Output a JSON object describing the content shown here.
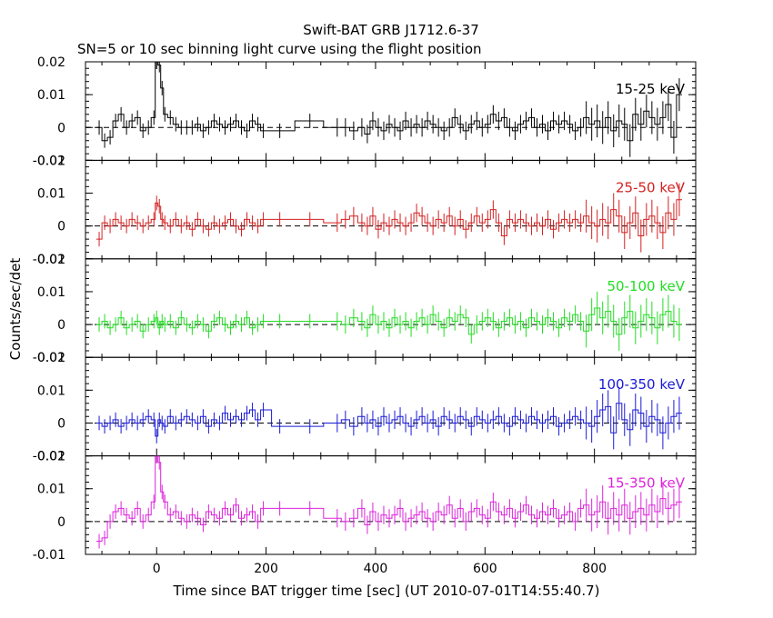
{
  "title": "Swift-BAT GRB J1712.6-37",
  "subtitle": "SN=5 or 10 sec binning light curve using the flight position",
  "xlabel": "Time since BAT trigger time [sec] (UT 2010-07-01T14:55:40.7)",
  "ylabel": "Counts/sec/det",
  "chart_data": [
    {
      "type": "line",
      "panel_label": "15-25 keV",
      "color": "#000000",
      "xlim": [
        -130,
        985
      ],
      "ylim": [
        -0.01,
        0.02
      ],
      "yticks": [
        "-0.01",
        "0",
        "0.01",
        "0.02"
      ],
      "x": [
        -105,
        -95,
        -85,
        -75,
        -65,
        -55,
        -45,
        -35,
        -25,
        -15,
        -5,
        0,
        5,
        10,
        15,
        25,
        35,
        45,
        55,
        65,
        75,
        85,
        95,
        105,
        115,
        125,
        135,
        145,
        155,
        165,
        175,
        185,
        195,
        225,
        280,
        330,
        345,
        360,
        375,
        385,
        395,
        405,
        415,
        425,
        435,
        445,
        455,
        465,
        475,
        485,
        495,
        505,
        515,
        525,
        535,
        545,
        555,
        565,
        575,
        585,
        595,
        605,
        615,
        625,
        635,
        645,
        655,
        665,
        675,
        685,
        695,
        705,
        715,
        725,
        735,
        745,
        755,
        765,
        775,
        785,
        795,
        805,
        815,
        825,
        835,
        845,
        855,
        865,
        875,
        885,
        895,
        905,
        915,
        925,
        935,
        945,
        955
      ],
      "values": [
        0.0,
        -0.004,
        -0.003,
        0.002,
        0.004,
        0.0,
        0.002,
        0.003,
        -0.001,
        0.0,
        0.003,
        0.02,
        0.019,
        0.012,
        0.004,
        0.003,
        0.001,
        0.0,
        0.0,
        0.0,
        0.001,
        -0.001,
        0.0,
        0.002,
        0.001,
        0.0,
        0.001,
        0.002,
        0.0,
        -0.001,
        0.002,
        0.001,
        -0.001,
        -0.001,
        0.002,
        0.0,
        0.0,
        -0.001,
        0.0,
        -0.002,
        0.002,
        0.0,
        -0.001,
        0.001,
        0.0,
        -0.001,
        0.002,
        0.0,
        0.001,
        0.0,
        0.002,
        0.001,
        0.0,
        -0.001,
        0.0,
        0.003,
        0.001,
        -0.001,
        0.001,
        0.002,
        0.0,
        0.001,
        0.004,
        0.002,
        0.003,
        0.0,
        -0.001,
        0.001,
        0.002,
        0.003,
        0.0,
        0.001,
        -0.001,
        0.002,
        0.001,
        0.002,
        0.001,
        -0.001,
        0.0,
        0.003,
        0.001,
        0.002,
        0.0,
        0.003,
        -0.001,
        0.002,
        0.001,
        -0.004,
        0.004,
        0.001,
        0.005,
        0.003,
        0.001,
        0.003,
        0.007,
        -0.003,
        0.01
      ]
    },
    {
      "type": "line",
      "panel_label": "25-50 keV",
      "color": "#d42020",
      "xlim": [
        -130,
        985
      ],
      "ylim": [
        -0.01,
        0.02
      ],
      "yticks": [
        "-0.01",
        "0",
        "0.01",
        "0.02"
      ],
      "x": [
        -105,
        -95,
        -85,
        -75,
        -65,
        -55,
        -45,
        -35,
        -25,
        -15,
        -5,
        0,
        5,
        10,
        15,
        25,
        35,
        45,
        55,
        65,
        75,
        85,
        95,
        105,
        115,
        125,
        135,
        145,
        155,
        165,
        175,
        185,
        195,
        225,
        280,
        330,
        345,
        360,
        375,
        385,
        395,
        405,
        415,
        425,
        435,
        445,
        455,
        465,
        475,
        485,
        495,
        505,
        515,
        525,
        535,
        545,
        555,
        565,
        575,
        585,
        595,
        605,
        615,
        625,
        635,
        645,
        655,
        665,
        675,
        685,
        695,
        705,
        715,
        725,
        735,
        745,
        755,
        765,
        775,
        785,
        795,
        805,
        815,
        825,
        835,
        845,
        855,
        865,
        875,
        885,
        895,
        905,
        915,
        925,
        935,
        945,
        955
      ],
      "values": [
        -0.004,
        0.001,
        0.0,
        0.002,
        0.001,
        0.0,
        0.002,
        0.001,
        0.0,
        0.001,
        0.002,
        0.007,
        0.006,
        0.002,
        0.001,
        0.0,
        0.002,
        0.0,
        0.001,
        -0.001,
        0.002,
        0.0,
        -0.001,
        0.001,
        0.0,
        0.001,
        0.002,
        0.0,
        -0.001,
        0.002,
        0.001,
        0.0,
        0.002,
        0.002,
        0.002,
        0.001,
        0.002,
        0.003,
        0.001,
        0.0,
        0.003,
        -0.001,
        0.001,
        0.0,
        0.002,
        0.001,
        0.0,
        0.001,
        0.004,
        0.003,
        0.001,
        0.0,
        0.002,
        0.001,
        0.003,
        0.0,
        0.002,
        -0.001,
        0.001,
        0.003,
        0.001,
        0.002,
        0.005,
        0.001,
        -0.003,
        0.002,
        0.001,
        0.002,
        0.001,
        0.0,
        0.001,
        0.0,
        0.002,
        -0.001,
        0.001,
        0.002,
        0.001,
        0.002,
        0.001,
        0.003,
        0.001,
        0.0,
        0.002,
        0.001,
        0.005,
        0.003,
        -0.002,
        0.001,
        0.004,
        -0.003,
        0.002,
        0.003,
        0.001,
        -0.002,
        0.004,
        0.002,
        0.008
      ]
    },
    {
      "type": "line",
      "panel_label": "50-100 keV",
      "color": "#22dd22",
      "xlim": [
        -130,
        985
      ],
      "ylim": [
        -0.01,
        0.02
      ],
      "yticks": [
        "-0.01",
        "0",
        "0.01",
        "0.02"
      ],
      "x": [
        -105,
        -95,
        -85,
        -75,
        -65,
        -55,
        -45,
        -35,
        -25,
        -15,
        -5,
        0,
        5,
        10,
        15,
        25,
        35,
        45,
        55,
        65,
        75,
        85,
        95,
        105,
        115,
        125,
        135,
        145,
        155,
        165,
        175,
        185,
        195,
        225,
        280,
        330,
        345,
        360,
        375,
        385,
        395,
        405,
        415,
        425,
        435,
        445,
        455,
        465,
        475,
        485,
        495,
        505,
        515,
        525,
        535,
        545,
        555,
        565,
        575,
        585,
        595,
        605,
        615,
        625,
        635,
        645,
        655,
        665,
        675,
        685,
        695,
        705,
        715,
        725,
        735,
        745,
        755,
        765,
        775,
        785,
        795,
        805,
        815,
        825,
        835,
        845,
        855,
        865,
        875,
        885,
        895,
        905,
        915,
        925,
        935,
        945,
        955
      ],
      "values": [
        0.0,
        0.001,
        -0.001,
        0.0,
        0.002,
        -0.001,
        0.0,
        0.001,
        -0.002,
        0.0,
        0.001,
        0.002,
        -0.001,
        0.001,
        0.0,
        0.001,
        -0.001,
        0.002,
        0.0,
        -0.001,
        0.001,
        0.0,
        -0.002,
        0.001,
        0.002,
        0.0,
        -0.001,
        0.001,
        0.0,
        0.002,
        -0.001,
        0.0,
        0.001,
        0.001,
        0.001,
        0.001,
        0.0,
        0.002,
        0.001,
        -0.001,
        0.003,
        0.0,
        0.001,
        -0.001,
        0.002,
        0.0,
        0.001,
        -0.001,
        0.001,
        0.002,
        0.0,
        0.003,
        0.001,
        -0.001,
        0.002,
        0.001,
        0.003,
        0.002,
        -0.003,
        0.0,
        0.001,
        0.002,
        0.001,
        -0.001,
        0.001,
        0.002,
        0.0,
        0.001,
        -0.001,
        0.002,
        0.001,
        0.0,
        0.002,
        0.001,
        -0.001,
        0.002,
        0.001,
        0.003,
        0.001,
        -0.002,
        0.003,
        0.005,
        0.002,
        0.004,
        0.001,
        -0.003,
        0.002,
        0.004,
        -0.001,
        0.001,
        0.003,
        0.002,
        -0.001,
        0.003,
        0.004,
        0.001,
        0.0
      ]
    },
    {
      "type": "line",
      "panel_label": "100-350 keV",
      "color": "#1a1ad6",
      "xlim": [
        -130,
        985
      ],
      "ylim": [
        -0.01,
        0.02
      ],
      "yticks": [
        "-0.01",
        "0",
        "0.01",
        "0.02"
      ],
      "x": [
        -105,
        -95,
        -85,
        -75,
        -65,
        -55,
        -45,
        -35,
        -25,
        -15,
        -5,
        0,
        5,
        10,
        15,
        25,
        35,
        45,
        55,
        65,
        75,
        85,
        95,
        105,
        115,
        125,
        135,
        145,
        155,
        165,
        175,
        185,
        195,
        225,
        280,
        330,
        345,
        360,
        375,
        385,
        395,
        405,
        415,
        425,
        435,
        445,
        455,
        465,
        475,
        485,
        495,
        505,
        515,
        525,
        535,
        545,
        555,
        565,
        575,
        585,
        595,
        605,
        615,
        625,
        635,
        645,
        655,
        665,
        675,
        685,
        695,
        705,
        715,
        725,
        735,
        745,
        755,
        765,
        775,
        785,
        795,
        805,
        815,
        825,
        835,
        845,
        855,
        865,
        875,
        885,
        895,
        905,
        915,
        925,
        935,
        945,
        955
      ],
      "values": [
        0.0,
        -0.001,
        0.0,
        0.001,
        -0.001,
        0.0,
        0.001,
        0.0,
        0.001,
        0.002,
        0.001,
        -0.004,
        0.001,
        0.0,
        -0.001,
        0.002,
        0.0,
        0.001,
        0.002,
        0.001,
        0.0,
        0.002,
        -0.001,
        0.001,
        0.0,
        0.003,
        0.001,
        0.002,
        0.001,
        0.003,
        0.004,
        0.001,
        0.004,
        -0.001,
        -0.001,
        0.0,
        0.001,
        -0.001,
        0.002,
        0.0,
        0.001,
        -0.001,
        0.002,
        0.0,
        0.001,
        0.002,
        0.0,
        -0.001,
        0.001,
        0.002,
        0.0,
        0.001,
        -0.001,
        0.002,
        0.001,
        0.0,
        0.002,
        0.001,
        -0.001,
        0.002,
        0.001,
        0.0,
        0.001,
        0.002,
        0.0,
        -0.001,
        0.002,
        0.001,
        0.0,
        0.002,
        0.001,
        0.0,
        0.001,
        0.002,
        -0.001,
        0.0,
        0.001,
        0.002,
        0.001,
        0.0,
        -0.001,
        0.002,
        0.004,
        0.005,
        -0.003,
        0.006,
        0.001,
        -0.002,
        0.004,
        0.003,
        -0.001,
        0.002,
        0.001,
        -0.003,
        0.0,
        0.002,
        0.003
      ]
    },
    {
      "type": "line",
      "panel_label": "15-350 keV",
      "color": "#dd22dd",
      "xlim": [
        -130,
        985
      ],
      "ylim": [
        -0.01,
        0.02
      ],
      "yticks": [
        "-0.01",
        "0",
        "0.01",
        "0.02"
      ],
      "x": [
        -105,
        -95,
        -85,
        -75,
        -65,
        -55,
        -45,
        -35,
        -25,
        -15,
        -5,
        0,
        5,
        10,
        15,
        25,
        35,
        45,
        55,
        65,
        75,
        85,
        95,
        105,
        115,
        125,
        135,
        145,
        155,
        165,
        175,
        185,
        195,
        225,
        280,
        330,
        345,
        360,
        375,
        385,
        395,
        405,
        415,
        425,
        435,
        445,
        455,
        465,
        475,
        485,
        495,
        505,
        515,
        525,
        535,
        545,
        555,
        565,
        575,
        585,
        595,
        605,
        615,
        625,
        635,
        645,
        655,
        665,
        675,
        685,
        695,
        705,
        715,
        725,
        735,
        745,
        755,
        765,
        775,
        785,
        795,
        805,
        815,
        825,
        835,
        845,
        855,
        865,
        875,
        885,
        895,
        905,
        915,
        925,
        935,
        945,
        955
      ],
      "values": [
        -0.006,
        -0.005,
        0.0,
        0.003,
        0.004,
        0.002,
        0.001,
        0.004,
        0.0,
        0.002,
        0.006,
        0.02,
        0.018,
        0.009,
        0.006,
        0.002,
        0.003,
        0.001,
        0.0,
        0.002,
        0.001,
        -0.001,
        0.003,
        0.002,
        0.001,
        0.004,
        0.002,
        0.005,
        0.001,
        0.002,
        0.003,
        0.0,
        0.004,
        0.004,
        0.004,
        0.001,
        0.0,
        0.001,
        0.004,
        -0.001,
        0.003,
        0.0,
        0.002,
        0.001,
        0.002,
        0.004,
        0.0,
        0.001,
        0.002,
        0.003,
        0.001,
        0.0,
        0.003,
        0.002,
        0.005,
        0.001,
        0.004,
        0.0,
        0.003,
        0.004,
        0.002,
        0.001,
        0.006,
        0.003,
        0.002,
        0.004,
        0.001,
        0.003,
        0.005,
        0.002,
        0.001,
        0.003,
        0.002,
        0.004,
        0.001,
        0.002,
        0.003,
        0.0,
        0.004,
        0.005,
        0.002,
        0.003,
        0.006,
        0.001,
        0.004,
        0.002,
        0.005,
        0.001,
        0.003,
        0.004,
        0.002,
        0.005,
        0.003,
        0.007,
        0.004,
        0.005,
        0.006
      ]
    }
  ],
  "xticks": [
    "0",
    "200",
    "400",
    "600",
    "800"
  ]
}
